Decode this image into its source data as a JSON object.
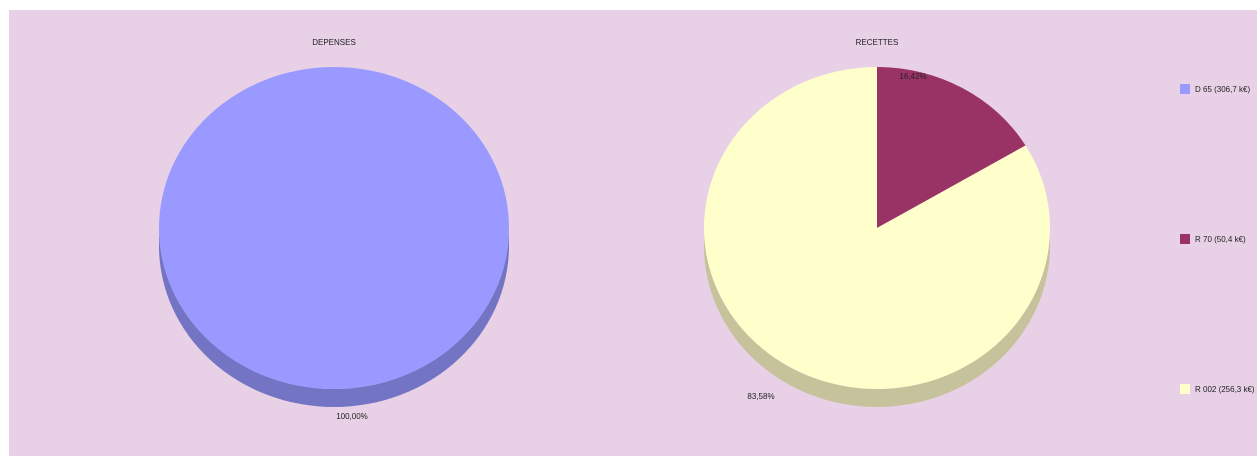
{
  "chart_data": [
    {
      "type": "pie",
      "title": "DEPENSES",
      "slices": [
        {
          "name": "D 65 (306,7 k€)",
          "value": 306.7,
          "label": "100,00%",
          "color": "#9999ff",
          "side_color": "#7474c4"
        }
      ]
    },
    {
      "type": "pie",
      "title": "RECETTES",
      "slices": [
        {
          "name": "R 70 (50,4 k€)",
          "value": 50.4,
          "label": "16,42%",
          "color": "#993366",
          "side_color": "#6e2549"
        },
        {
          "name": "R 002 (256,3 k€)",
          "value": 256.3,
          "label": "83,58%",
          "color": "#ffffcc",
          "side_color": "#c6c39c"
        }
      ]
    }
  ],
  "legend": [
    {
      "label": "D 65 (306,7 k€)",
      "color": "#9999ff"
    },
    {
      "label": "R 70 (50,4 k€)",
      "color": "#993366"
    },
    {
      "label": "R 002 (256,3 k€)",
      "color": "#ffffcc"
    }
  ],
  "colors": {
    "background": "#e8d0e6"
  }
}
